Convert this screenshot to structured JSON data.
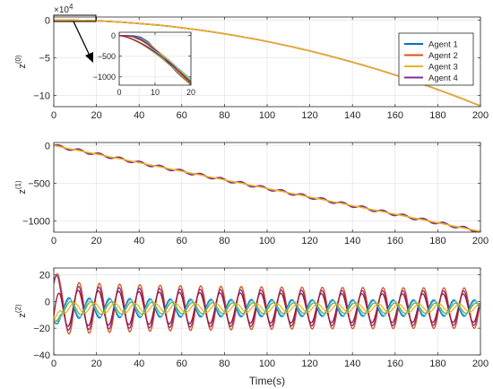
{
  "colors": {
    "agent1": "#0072BD",
    "agent2": "#D95319",
    "agent3": "#EDB120",
    "agent4": "#7E2F8E",
    "extra_teal": "#4DBEEE",
    "extra_green": "#77AC30",
    "extra_red": "#A2142F",
    "grid": "#e6e6e6",
    "axis": "#262626"
  },
  "chart_data": [
    {
      "type": "line",
      "panel": "top",
      "ylabel": "z",
      "ylabel_sup": "(0)",
      "xlabel": "",
      "exponent_label": "×10",
      "exponent_power": "4",
      "xlim": [
        0,
        200
      ],
      "ylim": [
        -11.5,
        0.4
      ],
      "x_ticks": [
        0,
        20,
        40,
        60,
        80,
        100,
        120,
        140,
        160,
        180,
        200
      ],
      "y_ticks": [
        0,
        -5,
        -10
      ],
      "grid": true,
      "legend_position": "top-right",
      "series": [
        {
          "name": "Agent 1",
          "color_key": "agent1",
          "x": [
            0,
            20,
            40,
            60,
            80,
            100,
            120,
            140,
            160,
            180,
            200
          ],
          "y": [
            0,
            -0.11,
            -0.46,
            -1.03,
            -1.83,
            -2.86,
            -4.11,
            -5.6,
            -7.31,
            -9.25,
            -11.4
          ]
        },
        {
          "name": "Agent 2",
          "color_key": "agent2",
          "x": [
            0,
            20,
            40,
            60,
            80,
            100,
            120,
            140,
            160,
            180,
            200
          ],
          "y": [
            0,
            -0.11,
            -0.46,
            -1.03,
            -1.83,
            -2.86,
            -4.11,
            -5.6,
            -7.31,
            -9.25,
            -11.4
          ]
        },
        {
          "name": "Agent 3",
          "color_key": "agent3",
          "x": [
            0,
            20,
            40,
            60,
            80,
            100,
            120,
            140,
            160,
            180,
            200
          ],
          "y": [
            0,
            -0.11,
            -0.46,
            -1.03,
            -1.83,
            -2.86,
            -4.11,
            -5.6,
            -7.31,
            -9.25,
            -11.4
          ]
        },
        {
          "name": "Agent 4",
          "color_key": "agent4",
          "x": [
            0,
            20,
            40,
            60,
            80,
            100,
            120,
            140,
            160,
            180,
            200
          ],
          "y": [
            0,
            -0.11,
            -0.46,
            -1.03,
            -1.83,
            -2.86,
            -4.11,
            -5.6,
            -7.31,
            -9.25,
            -11.4
          ]
        }
      ]
    },
    {
      "type": "line",
      "panel": "inset",
      "xlim": [
        0,
        20
      ],
      "ylim": [
        -1200,
        80
      ],
      "x_ticks": [
        0,
        10,
        20
      ],
      "y_ticks": [
        0,
        -500,
        -1000
      ],
      "grid": true,
      "series": [
        {
          "color_key": "agent1",
          "x": [
            0,
            2,
            4,
            6,
            8,
            10,
            12,
            14,
            16,
            18,
            20
          ],
          "y": [
            0,
            0,
            -10,
            -40,
            -150,
            -330,
            -500,
            -650,
            -820,
            -990,
            -1130
          ]
        },
        {
          "color_key": "agent2",
          "x": [
            0,
            2,
            4,
            6,
            8,
            10,
            12,
            14,
            16,
            18,
            20
          ],
          "y": [
            0,
            -5,
            -40,
            -110,
            -220,
            -350,
            -470,
            -620,
            -810,
            -1010,
            -1180
          ]
        },
        {
          "color_key": "agent3",
          "x": [
            0,
            2,
            4,
            6,
            8,
            10,
            12,
            14,
            16,
            18,
            20
          ],
          "y": [
            0,
            -8,
            -30,
            -70,
            -180,
            -320,
            -460,
            -600,
            -760,
            -940,
            -1100
          ]
        },
        {
          "color_key": "agent4",
          "x": [
            0,
            2,
            4,
            6,
            8,
            10,
            12,
            14,
            16,
            18,
            20
          ],
          "y": [
            0,
            -2,
            -20,
            -90,
            -200,
            -340,
            -500,
            -690,
            -880,
            -1040,
            -1190
          ]
        }
      ]
    },
    {
      "type": "line",
      "panel": "middle",
      "ylabel": "z",
      "ylabel_sup": "(1)",
      "xlabel": "",
      "xlim": [
        0,
        200
      ],
      "ylim": [
        -1150,
        40
      ],
      "x_ticks": [
        0,
        20,
        40,
        60,
        80,
        100,
        120,
        140,
        160,
        180,
        200
      ],
      "y_ticks": [
        0,
        -500,
        -1000
      ],
      "grid": true,
      "trend": {
        "start": 0,
        "slope_per_unit": -5.7,
        "oscillation_amplitude": 20,
        "oscillation_period": 9.5
      },
      "series": [
        {
          "name": "Agent 1",
          "color_key": "agent1",
          "x": [
            0,
            50,
            100,
            150,
            200
          ],
          "y": [
            0,
            -285,
            -570,
            -855,
            -1140
          ]
        },
        {
          "name": "Agent 2",
          "color_key": "agent2",
          "x": [
            0,
            50,
            100,
            150,
            200
          ],
          "y": [
            0,
            -285,
            -570,
            -855,
            -1140
          ]
        },
        {
          "name": "Agent 3",
          "color_key": "agent3",
          "x": [
            0,
            50,
            100,
            150,
            200
          ],
          "y": [
            0,
            -285,
            -570,
            -855,
            -1140
          ]
        },
        {
          "name": "Agent 4",
          "color_key": "agent4",
          "x": [
            0,
            50,
            100,
            150,
            200
          ],
          "y": [
            0,
            -285,
            -570,
            -855,
            -1140
          ]
        }
      ]
    },
    {
      "type": "line",
      "panel": "bottom",
      "ylabel": "z",
      "ylabel_sup": "(2)",
      "xlabel": "Time(s)",
      "xlim": [
        0,
        200
      ],
      "ylim": [
        -40,
        25
      ],
      "x_ticks": [
        0,
        20,
        40,
        60,
        80,
        100,
        120,
        140,
        160,
        180,
        200
      ],
      "y_ticks": [
        20,
        0,
        -20,
        -40
      ],
      "grid": true,
      "oscillation": {
        "center": -5,
        "period": 9.5
      },
      "series": [
        {
          "color_key": "agent2",
          "amplitude": 20,
          "phase": 0.0
        },
        {
          "color_key": "agent4",
          "amplitude": 17,
          "phase": 0.15
        },
        {
          "color_key": "extra_red",
          "amplitude": 14,
          "phase": 0.3
        },
        {
          "color_key": "agent1",
          "amplitude": 8,
          "phase": 3.14
        },
        {
          "color_key": "extra_teal",
          "amplitude": 7,
          "phase": 2.9
        },
        {
          "color_key": "extra_green",
          "amplitude": 5,
          "phase": 2.6
        },
        {
          "color_key": "agent3",
          "amplitude": 4,
          "phase": 1.5
        }
      ]
    }
  ]
}
